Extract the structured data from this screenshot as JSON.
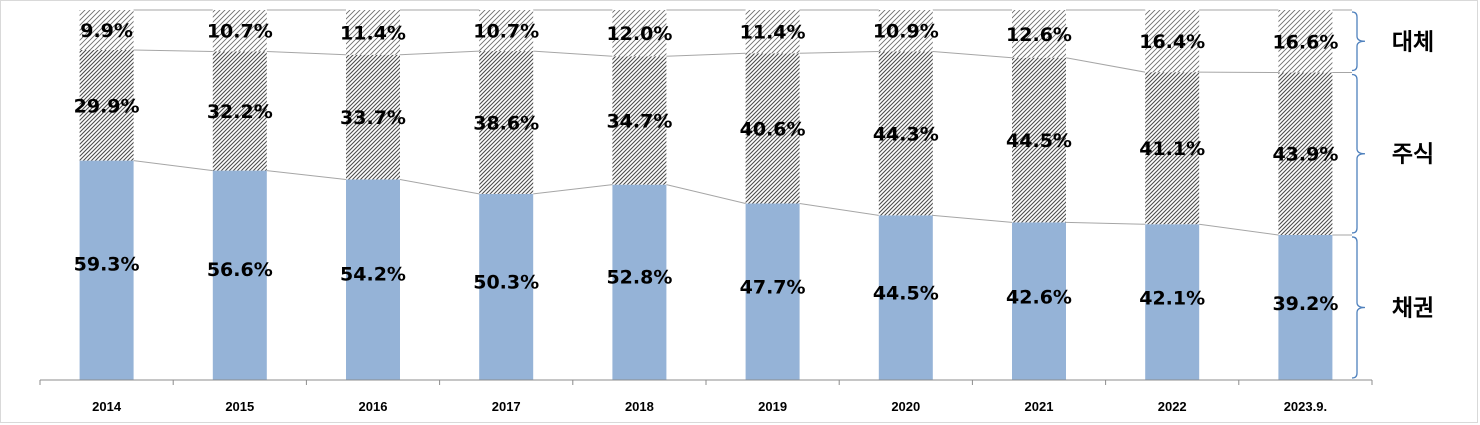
{
  "chart_data": {
    "type": "bar",
    "stacked": true,
    "normalized": true,
    "categories": [
      "2014",
      "2015",
      "2016",
      "2017",
      "2018",
      "2019",
      "2020",
      "2021",
      "2022",
      "2023.9."
    ],
    "series": [
      {
        "name": "채권",
        "values": [
          59.3,
          56.6,
          54.2,
          50.3,
          52.8,
          47.7,
          44.5,
          42.6,
          42.1,
          39.2
        ],
        "labels": [
          "59.3%",
          "56.6%",
          "54.2%",
          "50.3%",
          "52.8%",
          "47.7%",
          "44.5%",
          "42.6%",
          "42.1%",
          "39.2%"
        ],
        "color": "#95b3d7",
        "pattern": "solid"
      },
      {
        "name": "주식",
        "values": [
          29.9,
          32.2,
          33.7,
          38.6,
          34.7,
          40.6,
          44.3,
          44.5,
          41.1,
          43.9
        ],
        "labels": [
          "29.9%",
          "32.2%",
          "33.7%",
          "38.6%",
          "34.7%",
          "40.6%",
          "44.3%",
          "44.5%",
          "41.1%",
          "43.9%"
        ],
        "color": "#595959",
        "pattern": "dense-diagonal-hatch"
      },
      {
        "name": "대체",
        "values": [
          9.9,
          10.7,
          11.4,
          10.7,
          12.0,
          11.4,
          10.9,
          12.6,
          16.4,
          16.6
        ],
        "labels": [
          "9.9%",
          "10.7%",
          "11.4%",
          "10.7%",
          "12.0%",
          "11.4%",
          "10.9%",
          "12.6%",
          "16.4%",
          "16.6%"
        ],
        "color": "#595959",
        "pattern": "light-diagonal-hatch"
      }
    ],
    "series_lines": true,
    "legend": "right, braces",
    "grid": false,
    "ylim": [
      0,
      100
    ]
  }
}
